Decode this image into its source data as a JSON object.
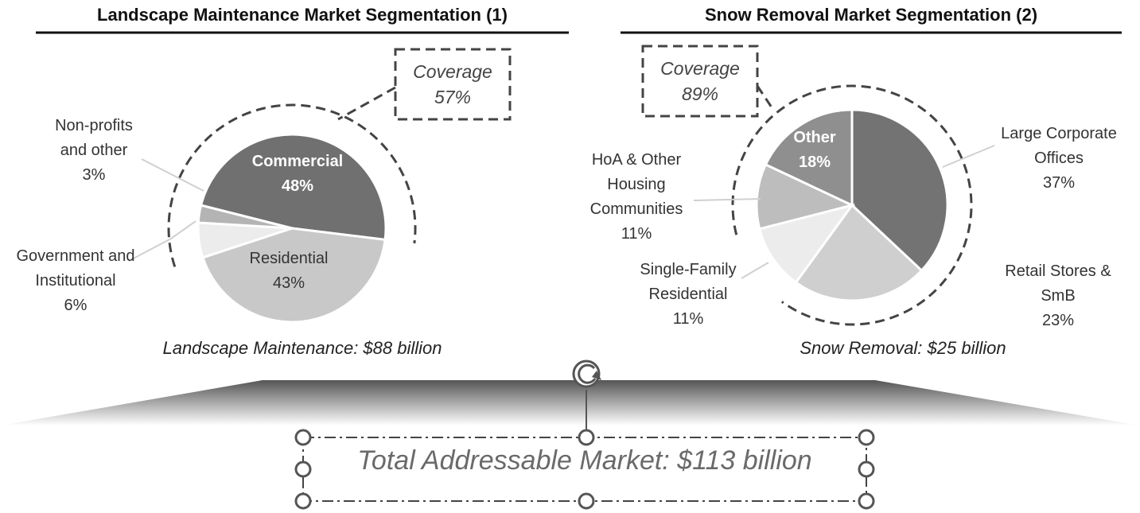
{
  "chart_data": [
    {
      "type": "pie",
      "title": "Landscape Maintenance Market Segmentation (1)",
      "caption": "Landscape Maintenance: $88 billion",
      "categories": [
        "Commercial",
        "Residential",
        "Government and Institutional",
        "Non-profits and other"
      ],
      "values": [
        48,
        43,
        6,
        3
      ],
      "value_labels": [
        "48%",
        "43%",
        "6%",
        "3%"
      ],
      "colors": [
        "#707070",
        "#c8c8c8",
        "#ececec",
        "#b4b4b4"
      ],
      "coverage_title": "Coverage",
      "coverage": 57,
      "coverage_label": "57%"
    },
    {
      "type": "pie",
      "title": "Snow Removal Market Segmentation (2)",
      "caption": "Snow Removal: $25 billion",
      "categories": [
        "Large Corporate Offices",
        "Retail Stores & SmB",
        "Single-Family Residential",
        "HoA & Other Housing Communities",
        "Other"
      ],
      "values": [
        37,
        23,
        11,
        11,
        18
      ],
      "value_labels": [
        "37%",
        "23%",
        "11%",
        "11%",
        "18%"
      ],
      "colors": [
        "#737373",
        "#cfcfcf",
        "#ececec",
        "#bdbdbd",
        "#8f8f8f"
      ],
      "coverage_title": "Coverage",
      "coverage": 89,
      "coverage_label": "89%"
    }
  ],
  "text_box": {
    "text": "Total Addressable Market: $113 billion"
  }
}
